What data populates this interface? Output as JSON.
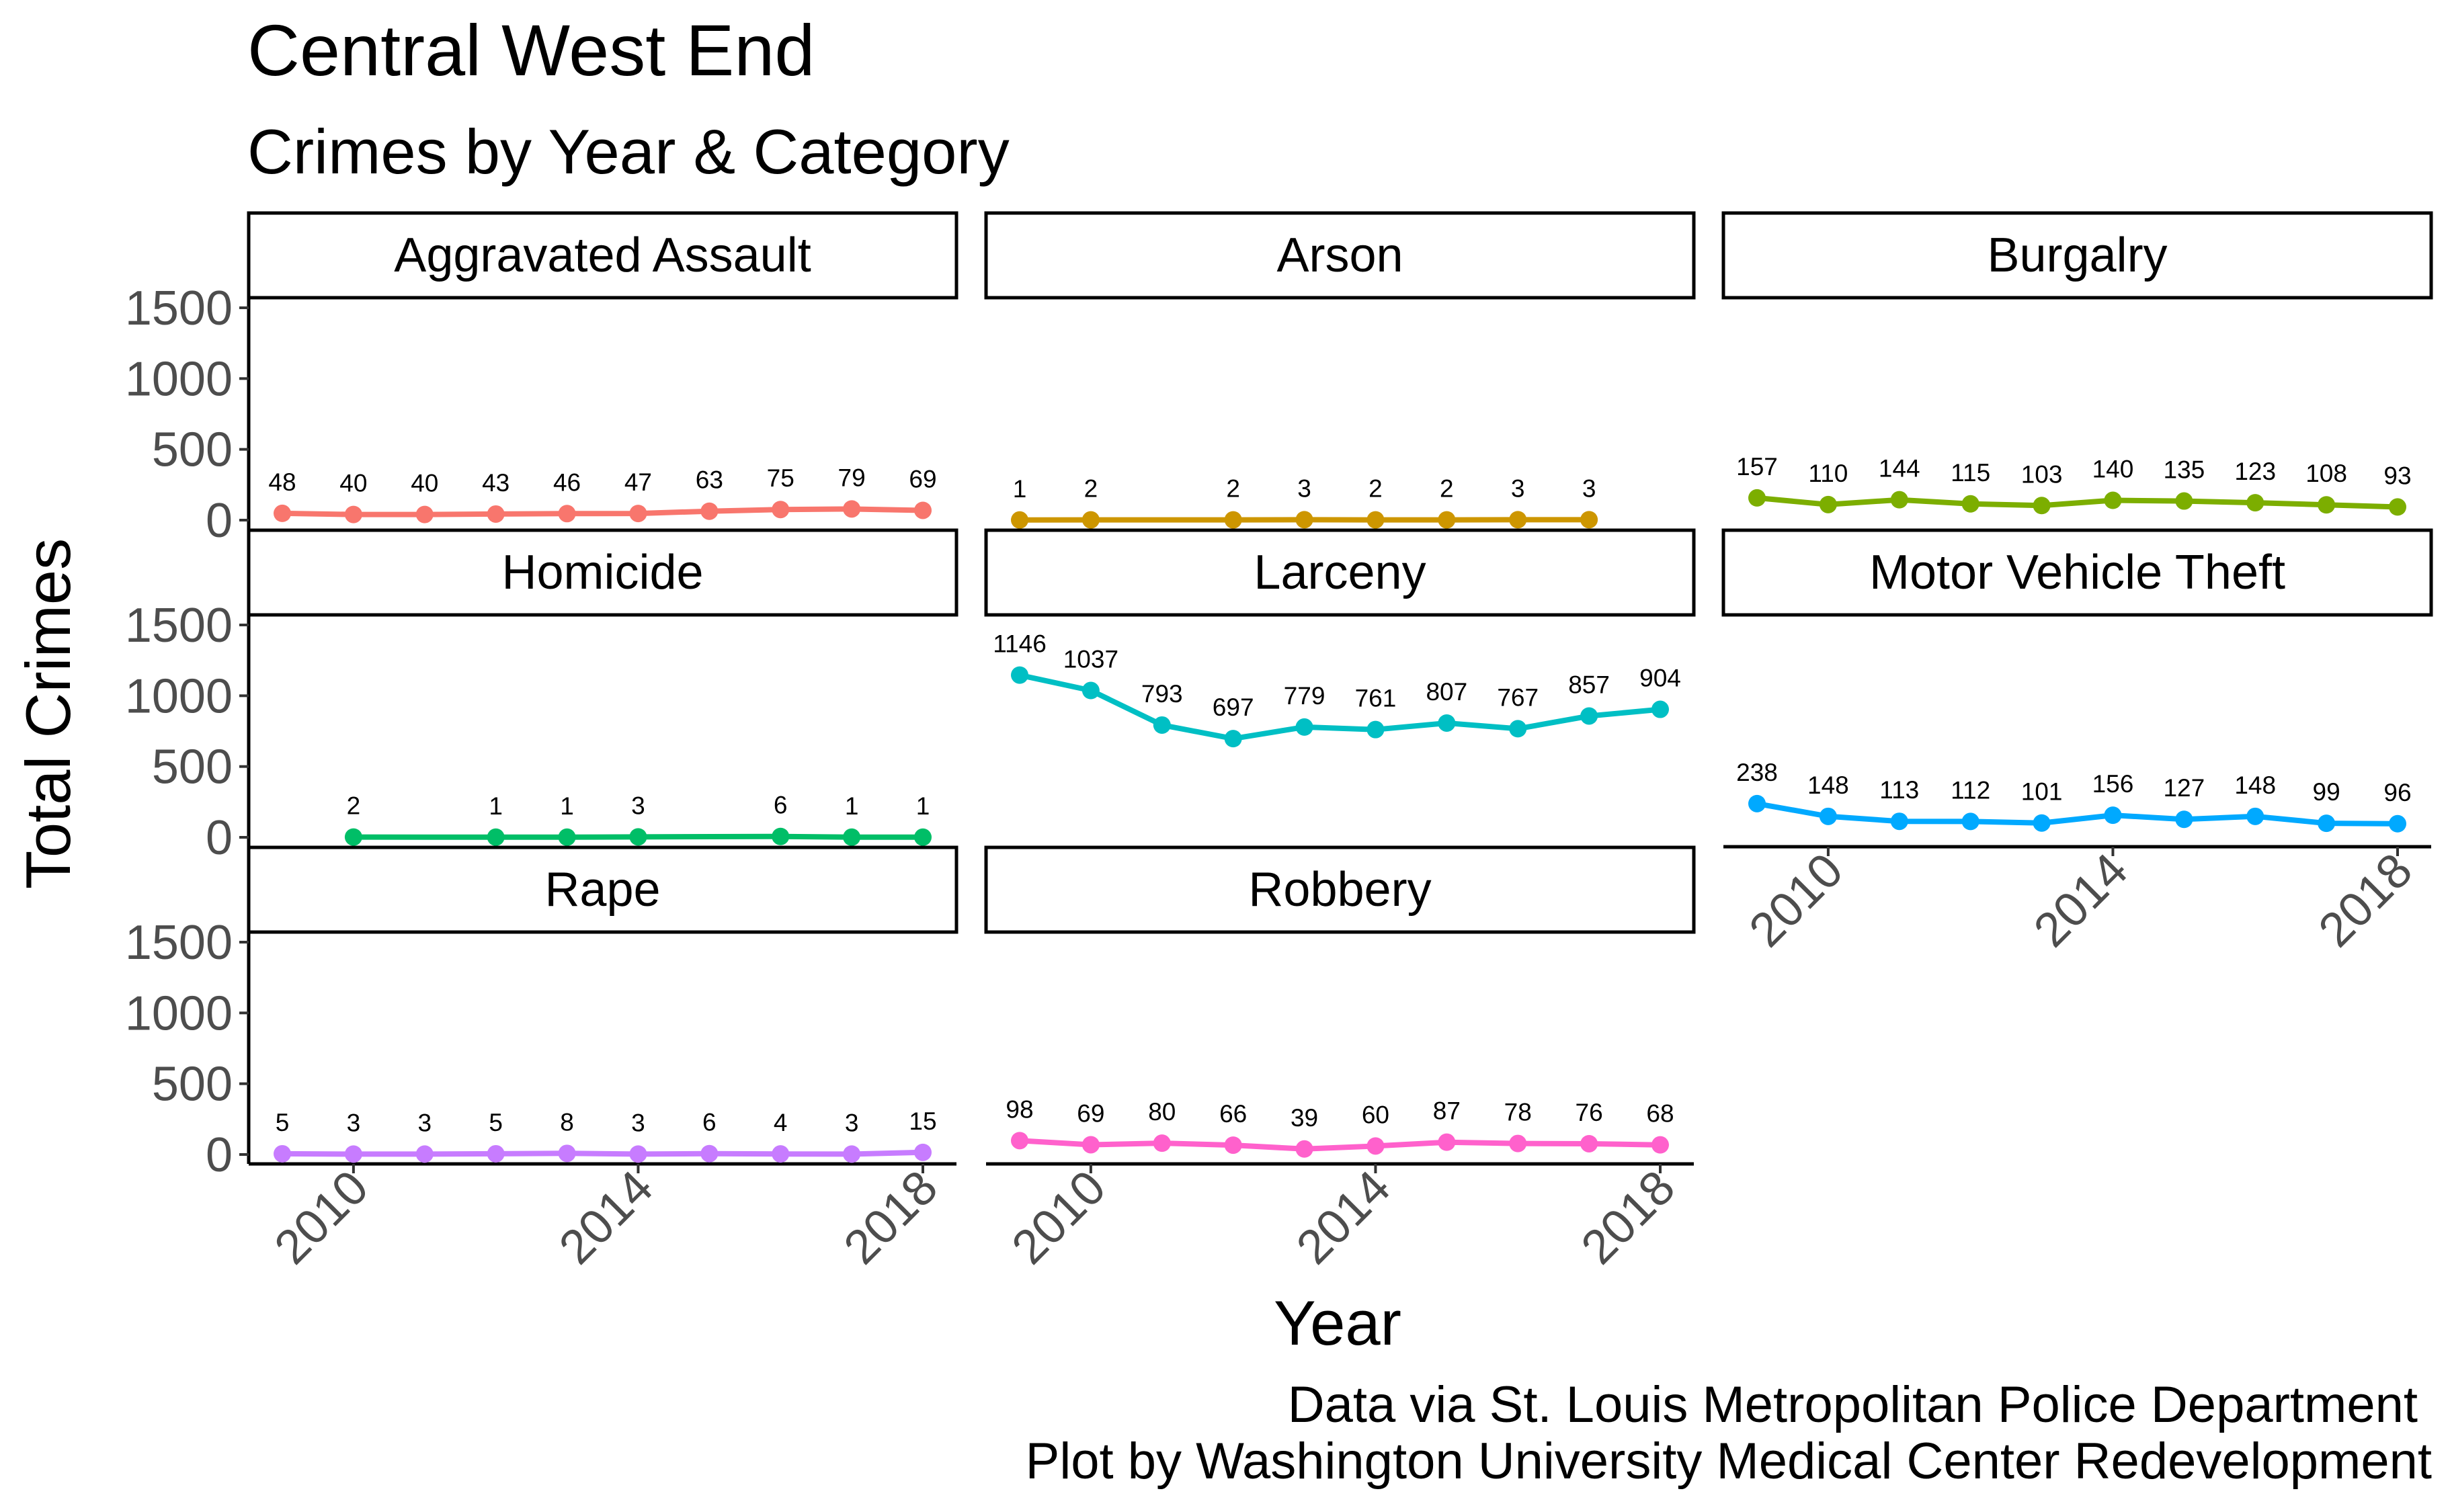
{
  "chart_data": {
    "type": "line",
    "title": "Central West End",
    "subtitle": "Crimes by Year & Category",
    "xlabel": "Year",
    "ylabel": "Total Crimes",
    "caption": [
      "Data via St. Louis Metropolitan Police Department",
      "Plot by Washington University Medical Center Redevelopment"
    ],
    "xlim": [
      2009,
      2018
    ],
    "ylim": [
      0,
      1500
    ],
    "x_ticks": [
      2010,
      2014,
      2018
    ],
    "y_ticks": [
      0,
      500,
      1000,
      1500
    ],
    "grid": false,
    "legend": "none",
    "panels": [
      {
        "name": "Aggravated Assault",
        "color": "#F8766D",
        "x": [
          2009,
          2010,
          2011,
          2012,
          2013,
          2014,
          2015,
          2016,
          2017,
          2018
        ],
        "values": [
          48,
          40,
          40,
          43,
          46,
          47,
          63,
          75,
          79,
          69
        ]
      },
      {
        "name": "Arson",
        "color": "#CD9600",
        "x": [
          2009,
          2010,
          2012,
          2013,
          2014,
          2015,
          2016,
          2017
        ],
        "values": [
          1,
          2,
          2,
          3,
          2,
          2,
          3,
          3
        ]
      },
      {
        "name": "Burgalry",
        "color": "#7CAE00",
        "x": [
          2009,
          2010,
          2011,
          2012,
          2013,
          2014,
          2015,
          2016,
          2017,
          2018
        ],
        "values": [
          157,
          110,
          144,
          115,
          103,
          140,
          135,
          123,
          108,
          93
        ]
      },
      {
        "name": "Homicide",
        "color": "#00BE67",
        "x": [
          2010,
          2012,
          2013,
          2014,
          2016,
          2017,
          2018
        ],
        "values": [
          2,
          1,
          1,
          3,
          6,
          1,
          1
        ]
      },
      {
        "name": "Larceny",
        "color": "#00BFC4",
        "x": [
          2009,
          2010,
          2011,
          2012,
          2013,
          2014,
          2015,
          2016,
          2017,
          2018
        ],
        "values": [
          1146,
          1037,
          793,
          697,
          779,
          761,
          807,
          767,
          857,
          904
        ]
      },
      {
        "name": "Motor Vehicle Theft",
        "color": "#00A9FF",
        "x": [
          2009,
          2010,
          2011,
          2012,
          2013,
          2014,
          2015,
          2016,
          2017,
          2018
        ],
        "values": [
          238,
          148,
          113,
          112,
          101,
          156,
          127,
          148,
          99,
          96
        ]
      },
      {
        "name": "Rape",
        "color": "#C77CFF",
        "x": [
          2009,
          2010,
          2011,
          2012,
          2013,
          2014,
          2015,
          2016,
          2017,
          2018
        ],
        "values": [
          5,
          3,
          3,
          5,
          8,
          3,
          6,
          4,
          3,
          15
        ]
      },
      {
        "name": "Robbery",
        "color": "#FF61CC",
        "x": [
          2009,
          2010,
          2011,
          2012,
          2013,
          2014,
          2015,
          2016,
          2017,
          2018
        ],
        "values": [
          98,
          69,
          80,
          66,
          39,
          60,
          87,
          78,
          76,
          68
        ]
      }
    ]
  }
}
